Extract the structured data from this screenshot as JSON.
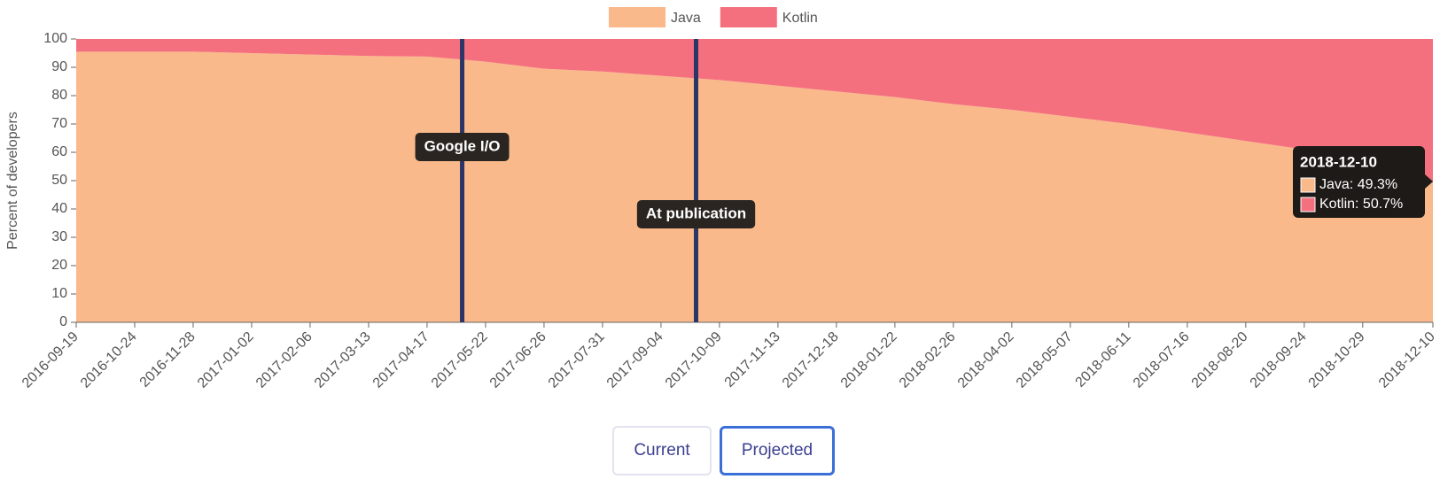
{
  "chart_data": {
    "type": "stacked_area",
    "y_label": "Percent of developers",
    "x": [
      "2016-09-19",
      "2016-10-24",
      "2016-11-28",
      "2017-01-02",
      "2017-02-06",
      "2017-03-13",
      "2017-04-17",
      "2017-05-22",
      "2017-06-26",
      "2017-07-31",
      "2017-09-04",
      "2017-10-09",
      "2017-11-13",
      "2017-12-18",
      "2018-01-22",
      "2018-02-26",
      "2018-04-02",
      "2018-05-07",
      "2018-06-11",
      "2018-07-16",
      "2018-08-20",
      "2018-09-24",
      "2018-10-29",
      "2018-12-10"
    ],
    "series": [
      {
        "name": "Java",
        "color": "#f9b98b",
        "values": [
          95.5,
          95.5,
          95.5,
          95,
          94.5,
          94,
          93.8,
          92,
          89.5,
          88.5,
          87,
          85.5,
          83.5,
          81.5,
          79.5,
          77,
          75,
          72.5,
          70,
          67,
          64,
          61,
          57,
          49.3
        ]
      },
      {
        "name": "Kotlin",
        "color": "#f5707f",
        "values": [
          4.5,
          4.5,
          4.5,
          5,
          5.5,
          6,
          6.2,
          8,
          10.5,
          11.5,
          13,
          14.5,
          16.5,
          18.5,
          20.5,
          23,
          25,
          27.5,
          30,
          33,
          36,
          39,
          43,
          50.7
        ]
      }
    ],
    "xlim": [
      "2016-09-19",
      "2018-12-10"
    ],
    "xticks": [
      "2016-09-19",
      "2016-10-24",
      "2016-11-28",
      "2017-01-02",
      "2017-02-06",
      "2017-03-13",
      "2017-04-17",
      "2017-05-22",
      "2017-06-26",
      "2017-07-31",
      "2017-09-04",
      "2017-10-09",
      "2017-11-13",
      "2017-12-18",
      "2018-01-22",
      "2018-02-26",
      "2018-04-02",
      "2018-05-07",
      "2018-06-11",
      "2018-07-16",
      "2018-08-20",
      "2018-09-24",
      "2018-10-29",
      "2018-12-10"
    ],
    "ylim": [
      0,
      100
    ],
    "yticks": [
      0,
      10,
      20,
      30,
      40,
      50,
      60,
      70,
      80,
      90,
      100
    ],
    "legend": "top",
    "annotations": [
      {
        "label": "Google I/O",
        "x": "2017-05-08",
        "color": "#2b3566"
      },
      {
        "label": "At publication",
        "x": "2017-09-25",
        "color": "#2b3566"
      }
    ],
    "tooltip": {
      "title": "2018-12-10",
      "items": [
        "Java: 49.3%",
        "Kotlin: 50.7%"
      ]
    }
  },
  "buttons": [
    {
      "label": "Current",
      "active": false
    },
    {
      "label": "Projected",
      "active": true
    }
  ]
}
